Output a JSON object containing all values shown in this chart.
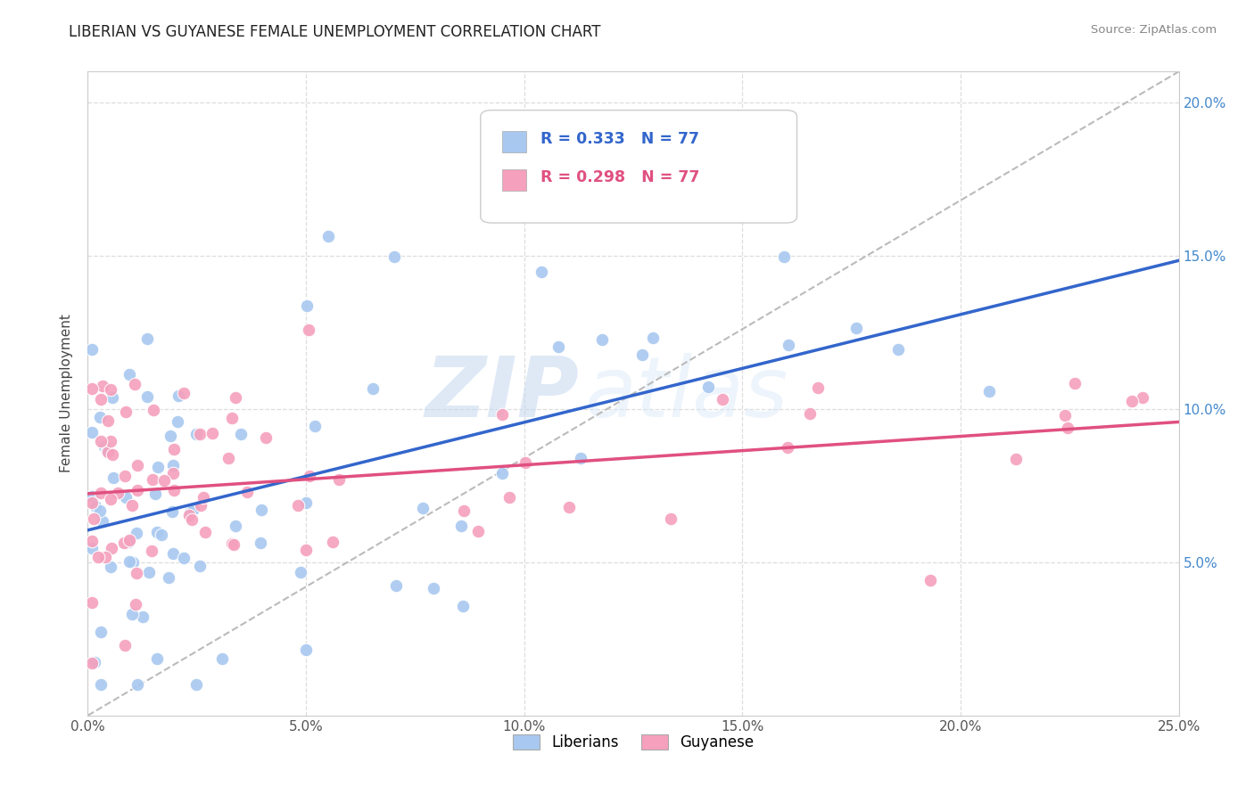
{
  "title": "LIBERIAN VS GUYANESE FEMALE UNEMPLOYMENT CORRELATION CHART",
  "source": "Source: ZipAtlas.com",
  "ylabel": "Female Unemployment",
  "xlim": [
    0.0,
    0.25
  ],
  "ylim": [
    0.0,
    0.21
  ],
  "xticks": [
    0.0,
    0.05,
    0.1,
    0.15,
    0.2,
    0.25
  ],
  "ytick_vals": [
    0.05,
    0.1,
    0.15,
    0.2
  ],
  "liberian_R": "R = 0.333",
  "liberian_N": "N = 77",
  "guyanese_R": "R = 0.298",
  "guyanese_N": "N = 77",
  "liberian_color": "#a8c8f0",
  "guyanese_color": "#f5a0bc",
  "liberian_line_color": "#3366cc",
  "guyanese_line_color": "#e05080",
  "diagonal_line_color": "#bbbbbb",
  "watermark_zip": "ZIP",
  "watermark_atlas": "atlas",
  "background_color": "#ffffff",
  "grid_color": "#dddddd",
  "right_tick_color": "#4488cc",
  "lib_line_start_y": 0.055,
  "lib_line_end_y": 0.135,
  "guy_line_start_y": 0.075,
  "guy_line_end_y": 0.108
}
